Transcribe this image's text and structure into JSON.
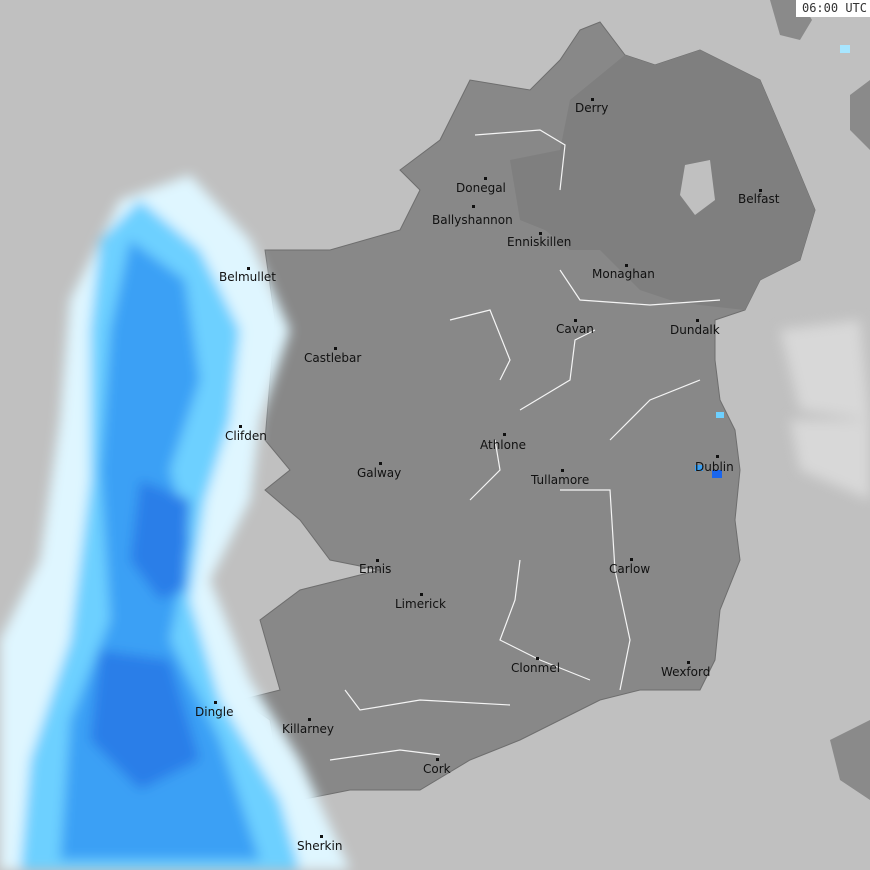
{
  "timestamp": "06:00 UTC",
  "colors": {
    "sea": "#c0c0c0",
    "land_roi": "#888888",
    "land_ni": "#7f7f7f",
    "rain_trace": "#dff6ff",
    "rain_light": "#6dd0ff",
    "rain_moderate": "#3aa0f5",
    "rain_heavy": "#1a66ee"
  },
  "cities": [
    {
      "name": "Derry"
    },
    {
      "name": "Donegal"
    },
    {
      "name": "Belfast"
    },
    {
      "name": "Ballyshannon"
    },
    {
      "name": "Enniskillen"
    },
    {
      "name": "Belmullet"
    },
    {
      "name": "Monaghan"
    },
    {
      "name": "Cavan"
    },
    {
      "name": "Dundalk"
    },
    {
      "name": "Castlebar"
    },
    {
      "name": "Clifden"
    },
    {
      "name": "Athlone"
    },
    {
      "name": "Dublin"
    },
    {
      "name": "Galway"
    },
    {
      "name": "Tullamore"
    },
    {
      "name": "Ennis"
    },
    {
      "name": "Carlow"
    },
    {
      "name": "Limerick"
    },
    {
      "name": "Clonmel"
    },
    {
      "name": "Wexford"
    },
    {
      "name": "Dingle"
    },
    {
      "name": "Killarney"
    },
    {
      "name": "Cork"
    },
    {
      "name": "Sherkin"
    }
  ]
}
